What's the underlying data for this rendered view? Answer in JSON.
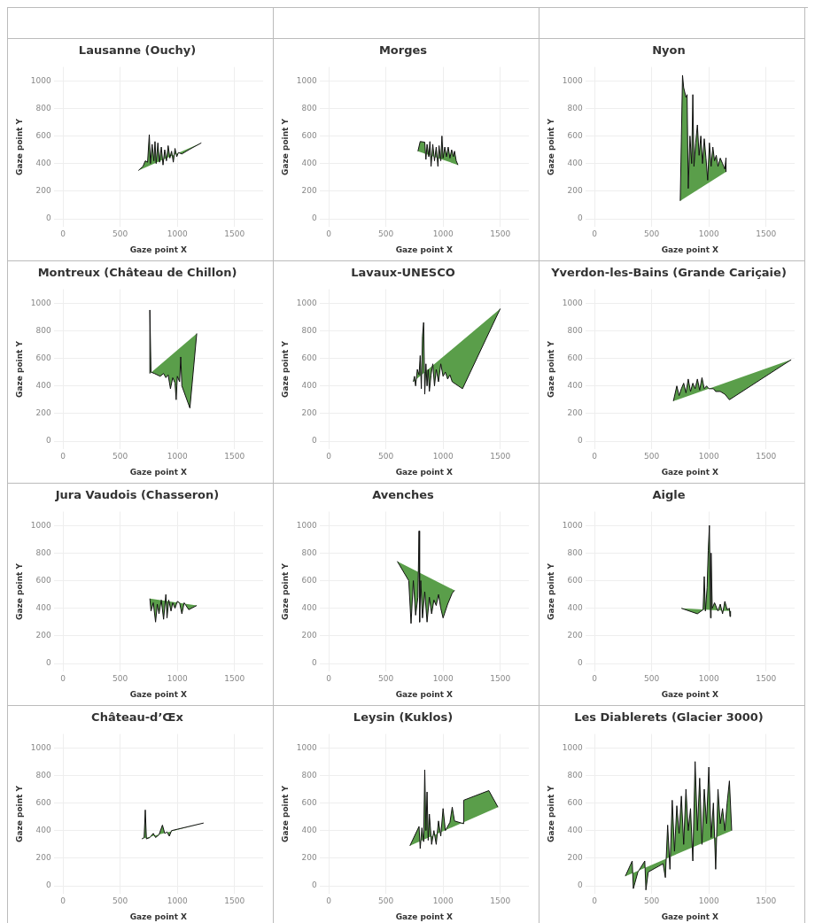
{
  "chart_data": [
    {
      "type": "area",
      "title": "Lausanne (Ouchy)",
      "xlabel": "Gaze point X",
      "ylabel": "Gaze point Y",
      "xlim": [
        -80,
        1750
      ],
      "xticks": [
        0,
        500,
        1000,
        1500
      ],
      "ylim": [
        -60,
        1100
      ],
      "yticks": [
        0,
        200,
        400,
        600,
        800,
        1000
      ],
      "grid": true,
      "series": [
        {
          "color": "#5a9e4a",
          "x": [
            660,
            700,
            720,
            740,
            755,
            765,
            780,
            795,
            805,
            815,
            830,
            845,
            860,
            875,
            890,
            905,
            920,
            935,
            950,
            965,
            980,
            995,
            1010,
            1040,
            1100,
            1210
          ],
          "values": [
            350,
            380,
            420,
            410,
            610,
            400,
            540,
            420,
            560,
            400,
            550,
            410,
            520,
            390,
            500,
            420,
            530,
            440,
            490,
            410,
            510,
            450,
            480,
            470,
            500,
            550
          ]
        }
      ]
    },
    {
      "type": "area",
      "title": "Morges",
      "xlabel": "Gaze point X",
      "ylabel": "Gaze point Y",
      "xlim": [
        -80,
        1750
      ],
      "xticks": [
        0,
        500,
        1000,
        1500
      ],
      "ylim": [
        -60,
        1100
      ],
      "yticks": [
        0,
        200,
        400,
        600,
        800,
        1000
      ],
      "grid": true,
      "series": [
        {
          "color": "#5a9e4a",
          "x": [
            780,
            800,
            840,
            850,
            860,
            875,
            885,
            895,
            910,
            925,
            940,
            955,
            965,
            980,
            990,
            1000,
            1015,
            1030,
            1045,
            1060,
            1075,
            1090,
            1100,
            1115,
            1130
          ],
          "values": [
            490,
            560,
            555,
            430,
            540,
            450,
            560,
            380,
            540,
            420,
            520,
            380,
            530,
            420,
            600,
            440,
            520,
            450,
            520,
            440,
            500,
            450,
            490,
            420,
            390
          ]
        }
      ]
    },
    {
      "type": "area",
      "title": "Nyon",
      "xlabel": "Gaze point X",
      "ylabel": "Gaze point Y",
      "xlim": [
        -80,
        1750
      ],
      "xticks": [
        0,
        500,
        1000,
        1500
      ],
      "ylim": [
        -60,
        1100
      ],
      "yticks": [
        0,
        200,
        400,
        600,
        800,
        1000
      ],
      "grid": true,
      "series": [
        {
          "color": "#5a9e4a",
          "x": [
            750,
            770,
            780,
            800,
            810,
            820,
            835,
            850,
            860,
            870,
            885,
            900,
            915,
            930,
            945,
            960,
            975,
            990,
            1005,
            1020,
            1035,
            1050,
            1065,
            1080,
            1100,
            1120,
            1140,
            1150,
            1150
          ],
          "values": [
            130,
            1040,
            950,
            880,
            900,
            220,
            600,
            400,
            900,
            380,
            550,
            680,
            460,
            600,
            400,
            580,
            440,
            280,
            550,
            380,
            520,
            420,
            460,
            380,
            440,
            400,
            360,
            440,
            340
          ]
        }
      ]
    },
    {
      "type": "area",
      "title": "Montreux (Château de Chillon)",
      "xlabel": "Gaze point X",
      "ylabel": "Gaze point Y",
      "xlim": [
        -80,
        1750
      ],
      "xticks": [
        0,
        500,
        1000,
        1500
      ],
      "ylim": [
        -60,
        1100
      ],
      "yticks": [
        0,
        200,
        400,
        600,
        800,
        1000
      ],
      "grid": true,
      "series": [
        {
          "color": "#5a9e4a",
          "x": [
            760,
            760,
            770,
            800,
            850,
            880,
            900,
            920,
            940,
            960,
            980,
            990,
            1000,
            1020,
            1030,
            1040,
            1110,
            1170
          ],
          "values": [
            490,
            950,
            500,
            490,
            470,
            490,
            460,
            480,
            380,
            460,
            420,
            300,
            470,
            430,
            610,
            400,
            240,
            780
          ]
        }
      ]
    },
    {
      "type": "area",
      "title": "Lavaux-UNESCO",
      "xlabel": "Gaze point X",
      "ylabel": "Gaze point Y",
      "xlim": [
        -80,
        1750
      ],
      "xticks": [
        0,
        500,
        1000,
        1500
      ],
      "ylim": [
        -60,
        1100
      ],
      "yticks": [
        0,
        200,
        400,
        600,
        800,
        1000
      ],
      "grid": true,
      "series": [
        {
          "color": "#5a9e4a",
          "x": [
            740,
            750,
            760,
            775,
            790,
            800,
            810,
            820,
            830,
            840,
            850,
            860,
            870,
            880,
            895,
            910,
            925,
            940,
            960,
            980,
            1000,
            1020,
            1040,
            1060,
            1080,
            1170,
            1500
          ],
          "values": [
            430,
            470,
            400,
            520,
            480,
            620,
            380,
            760,
            860,
            340,
            560,
            400,
            520,
            360,
            480,
            560,
            400,
            520,
            430,
            560,
            470,
            500,
            450,
            480,
            430,
            380,
            960
          ]
        }
      ]
    },
    {
      "type": "area",
      "title": "Yverdon-les-Bains (Grande Cariçaie)",
      "xlabel": "Gaze point X",
      "ylabel": "Gaze point Y",
      "xlim": [
        -80,
        1750
      ],
      "xticks": [
        0,
        500,
        1000,
        1500
      ],
      "ylim": [
        -60,
        1100
      ],
      "yticks": [
        0,
        200,
        400,
        600,
        800,
        1000
      ],
      "grid": true,
      "series": [
        {
          "color": "#5a9e4a",
          "x": [
            690,
            720,
            740,
            760,
            780,
            800,
            820,
            840,
            860,
            880,
            900,
            920,
            940,
            960,
            980,
            1000,
            1040,
            1060,
            1100,
            1140,
            1180,
            1720
          ],
          "values": [
            290,
            400,
            330,
            380,
            420,
            350,
            450,
            360,
            420,
            380,
            450,
            370,
            460,
            380,
            400,
            380,
            380,
            360,
            360,
            340,
            300,
            590
          ]
        }
      ]
    },
    {
      "type": "area",
      "title": "Jura Vaudois (Chasseron)",
      "xlabel": "Gaze point X",
      "ylabel": "Gaze point Y",
      "xlim": [
        -80,
        1750
      ],
      "xticks": [
        0,
        500,
        1000,
        1500
      ],
      "ylim": [
        -60,
        1100
      ],
      "yticks": [
        0,
        200,
        400,
        600,
        800,
        1000
      ],
      "grid": true,
      "series": [
        {
          "color": "#5a9e4a",
          "x": [
            760,
            770,
            790,
            810,
            825,
            840,
            860,
            880,
            900,
            910,
            925,
            945,
            960,
            980,
            1000,
            1020,
            1040,
            1060,
            1100,
            1170
          ],
          "values": [
            470,
            380,
            440,
            300,
            430,
            360,
            460,
            320,
            500,
            330,
            460,
            380,
            440,
            400,
            450,
            440,
            360,
            440,
            390,
            420
          ]
        }
      ]
    },
    {
      "type": "area",
      "title": "Avenches",
      "xlabel": "Gaze point X",
      "ylabel": "Gaze point Y",
      "xlim": [
        -80,
        1750
      ],
      "xticks": [
        0,
        500,
        1000,
        1500
      ],
      "ylim": [
        -60,
        1100
      ],
      "yticks": [
        0,
        200,
        400,
        600,
        800,
        1000
      ],
      "grid": true,
      "series": [
        {
          "color": "#5a9e4a",
          "x": [
            600,
            700,
            720,
            740,
            760,
            780,
            790,
            795,
            805,
            820,
            840,
            860,
            880,
            900,
            920,
            940,
            960,
            980,
            1000,
            1040,
            1080,
            1100
          ],
          "values": [
            740,
            600,
            290,
            600,
            350,
            480,
            960,
            300,
            600,
            330,
            520,
            300,
            480,
            360,
            460,
            420,
            500,
            400,
            330,
            430,
            510,
            530
          ]
        }
      ]
    },
    {
      "type": "area",
      "title": "Aigle",
      "xlabel": "Gaze point X",
      "ylabel": "Gaze point Y",
      "xlim": [
        -80,
        1750
      ],
      "xticks": [
        0,
        500,
        1000,
        1500
      ],
      "ylim": [
        -60,
        1100
      ],
      "yticks": [
        0,
        200,
        400,
        600,
        800,
        1000
      ],
      "grid": true,
      "series": [
        {
          "color": "#5a9e4a",
          "x": [
            760,
            900,
            950,
            960,
            970,
            985,
            995,
            1005,
            1015,
            1020,
            1030,
            1050,
            1080,
            1100,
            1120,
            1140,
            1160,
            1180,
            1185,
            1190
          ],
          "values": [
            400,
            360,
            390,
            630,
            380,
            550,
            820,
            1000,
            330,
            800,
            400,
            440,
            380,
            430,
            360,
            450,
            390,
            400,
            340,
            380
          ]
        }
      ]
    },
    {
      "type": "area",
      "title": "Château-d’Œx",
      "xlabel": "Gaze point X",
      "ylabel": "Gaze point Y",
      "xlim": [
        -80,
        1750
      ],
      "xticks": [
        0,
        500,
        1000,
        1500
      ],
      "ylim": [
        -60,
        1100
      ],
      "yticks": [
        0,
        200,
        400,
        600,
        800,
        1000
      ],
      "grid": true,
      "series": [
        {
          "color": "#5a9e4a",
          "x": [
            690,
            710,
            720,
            730,
            760,
            790,
            810,
            840,
            870,
            890,
            910,
            930,
            950,
            1000,
            1230
          ],
          "values": [
            340,
            350,
            550,
            340,
            350,
            380,
            350,
            370,
            440,
            380,
            390,
            360,
            400,
            410,
            455
          ]
        }
      ]
    },
    {
      "type": "area",
      "title": "Leysin (Kuklos)",
      "xlabel": "Gaze point X",
      "ylabel": "Gaze point Y",
      "xlim": [
        -80,
        1750
      ],
      "xticks": [
        0,
        500,
        1000,
        1500
      ],
      "ylim": [
        -60,
        1100
      ],
      "yticks": [
        0,
        200,
        400,
        600,
        800,
        1000
      ],
      "grid": true,
      "series": [
        {
          "color": "#5a9e4a",
          "x": [
            710,
            790,
            800,
            815,
            830,
            840,
            850,
            860,
            870,
            880,
            900,
            920,
            940,
            960,
            980,
            1000,
            1020,
            1060,
            1080,
            1100,
            1180,
            1180,
            1400,
            1480
          ],
          "values": [
            290,
            430,
            270,
            420,
            320,
            840,
            400,
            680,
            330,
            520,
            300,
            400,
            300,
            470,
            360,
            560,
            400,
            460,
            570,
            470,
            450,
            620,
            690,
            570
          ]
        }
      ]
    },
    {
      "type": "area",
      "title": "Les Diablerets (Glacier 3000)",
      "xlabel": "Gaze point X",
      "ylabel": "Gaze point Y",
      "xlim": [
        -80,
        1750
      ],
      "xticks": [
        0,
        500,
        1000,
        1500
      ],
      "ylim": [
        -60,
        1100
      ],
      "yticks": [
        0,
        200,
        400,
        600,
        800,
        1000
      ],
      "grid": true,
      "series": [
        {
          "color": "#5a9e4a",
          "x": [
            270,
            330,
            340,
            380,
            440,
            450,
            470,
            600,
            620,
            640,
            660,
            680,
            700,
            720,
            740,
            760,
            780,
            800,
            820,
            840,
            860,
            880,
            900,
            920,
            940,
            960,
            980,
            1000,
            1020,
            1040,
            1060,
            1080,
            1100,
            1120,
            1140,
            1160,
            1180,
            1200
          ],
          "values": [
            70,
            180,
            -20,
            100,
            180,
            -30,
            100,
            160,
            60,
            440,
            120,
            620,
            250,
            580,
            380,
            650,
            300,
            700,
            400,
            560,
            180,
            900,
            400,
            780,
            300,
            700,
            450,
            860,
            350,
            600,
            120,
            700,
            450,
            560,
            400,
            600,
            760,
            400
          ]
        }
      ]
    }
  ]
}
